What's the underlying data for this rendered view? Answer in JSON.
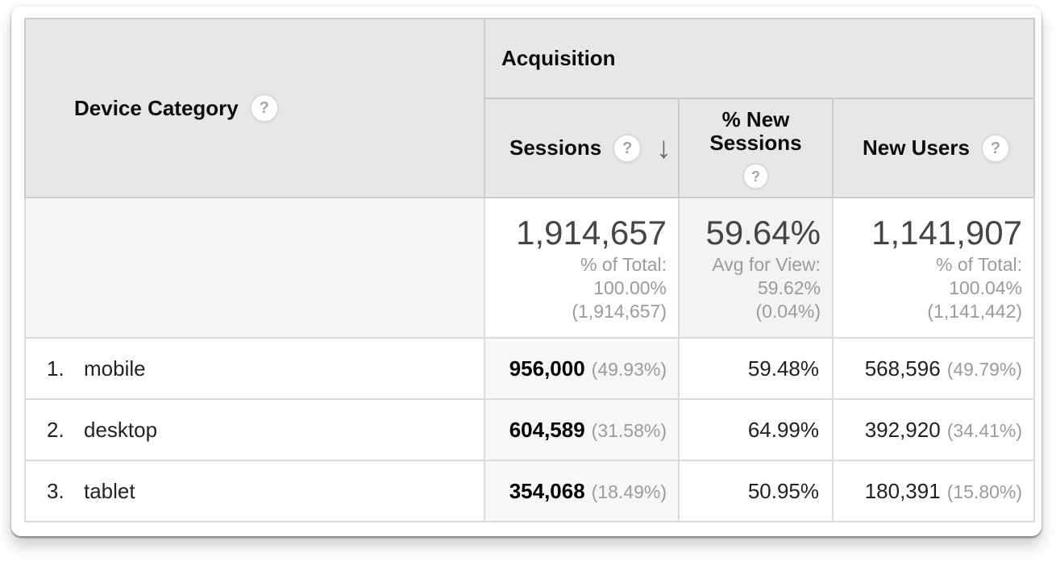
{
  "icons": {
    "help": "?",
    "sort_descending": "↓"
  },
  "colors": {
    "header_bg": "#e7e7e7",
    "sorted_column_bg": "#f7f7f7",
    "summary_tint_bg": "#f3f3f3",
    "muted_text": "#9b9b9b",
    "border": "#cbcbcb"
  },
  "table": {
    "dimension_header": {
      "label": "Device Category"
    },
    "group_header": {
      "label": "Acquisition"
    },
    "columns": [
      {
        "label": "Sessions",
        "sorted": "descending"
      },
      {
        "label": "% New Sessions"
      },
      {
        "label": "New Users"
      }
    ],
    "summary": {
      "sessions": {
        "value": "1,914,657",
        "lines": [
          "% of Total:",
          "100.00%",
          "(1,914,657)"
        ]
      },
      "new_sessions": {
        "value": "59.64%",
        "lines": [
          "Avg for View:",
          "59.62%",
          "(0.04%)"
        ]
      },
      "new_users": {
        "value": "1,141,907",
        "lines": [
          "% of Total:",
          "100.04%",
          "(1,141,442)"
        ]
      }
    },
    "rows": [
      {
        "rank": "1.",
        "label": "mobile",
        "sessions": "956,000",
        "sessions_pct": "(49.93%)",
        "new_sessions": "59.48%",
        "new_users": "568,596",
        "new_users_pct": "(49.79%)"
      },
      {
        "rank": "2.",
        "label": "desktop",
        "sessions": "604,589",
        "sessions_pct": "(31.58%)",
        "new_sessions": "64.99%",
        "new_users": "392,920",
        "new_users_pct": "(34.41%)"
      },
      {
        "rank": "3.",
        "label": "tablet",
        "sessions": "354,068",
        "sessions_pct": "(18.49%)",
        "new_sessions": "50.95%",
        "new_users": "180,391",
        "new_users_pct": "(15.80%)"
      }
    ]
  }
}
